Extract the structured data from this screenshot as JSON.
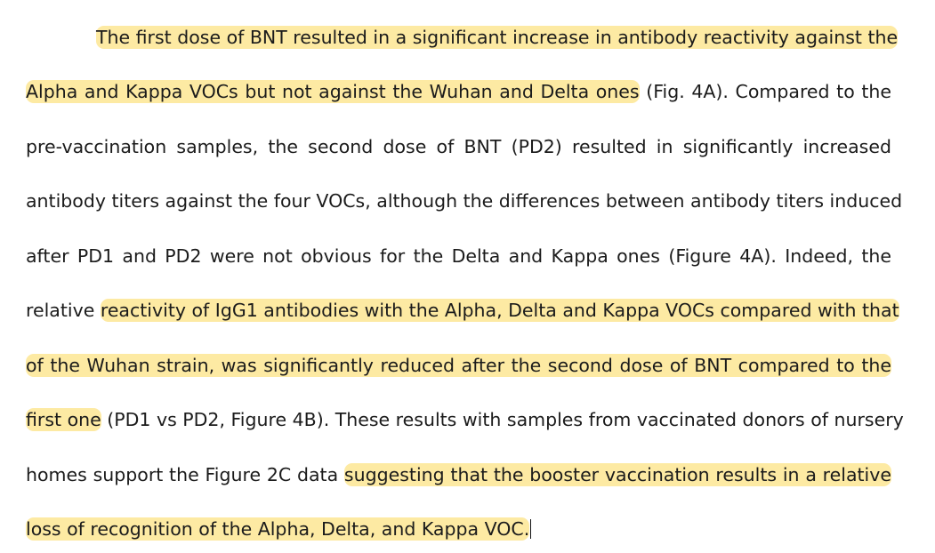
{
  "document": {
    "paragraph": {
      "lines": [
        {
          "segments": [
            {
              "text": "The first dose of BNT resulted in a significant increase in antibody reactivity against the",
              "highlight": true
            }
          ]
        },
        {
          "segments": [
            {
              "text": "Alpha and Kappa VOCs but not against the Wuhan and Delta ones",
              "highlight": true
            },
            {
              "text": " (Fig. 4A). Compared to the",
              "highlight": false
            }
          ]
        },
        {
          "segments": [
            {
              "text": "pre-vaccination samples, the second dose of BNT (PD2) resulted in significantly increased",
              "highlight": false
            }
          ]
        },
        {
          "segments": [
            {
              "text": "antibody titers against the four VOCs, although the differences between antibody titers induced",
              "highlight": false
            }
          ]
        },
        {
          "segments": [
            {
              "text": "after PD1 and PD2 were not obvious for the Delta and Kappa ones (Figure 4A). Indeed, the",
              "highlight": false
            }
          ]
        },
        {
          "segments": [
            {
              "text": "relative ",
              "highlight": false
            },
            {
              "text": "reactivity of IgG1 antibodies with the Alpha, Delta and Kappa VOCs compared with that",
              "highlight": true
            }
          ]
        },
        {
          "segments": [
            {
              "text": "of the Wuhan strain, was significantly reduced after the second dose of BNT compared to the",
              "highlight": true
            }
          ]
        },
        {
          "segments": [
            {
              "text": "first one",
              "highlight": true
            },
            {
              "text": " (PD1 vs PD2, Figure 4B). These results with samples from vaccinated donors of nursery",
              "highlight": false
            }
          ]
        },
        {
          "segments": [
            {
              "text": "homes support the Figure 2C data ",
              "highlight": false
            },
            {
              "text": "suggesting that the booster vaccination results in a relative",
              "highlight": true
            }
          ]
        },
        {
          "segments": [
            {
              "text": "loss of recognition of the Alpha, Delta, and Kappa VOC.",
              "highlight": true
            }
          ]
        }
      ]
    },
    "colors": {
      "highlight": "#fdeaa3",
      "text": "#1b1b1b",
      "background": "#ffffff"
    }
  }
}
